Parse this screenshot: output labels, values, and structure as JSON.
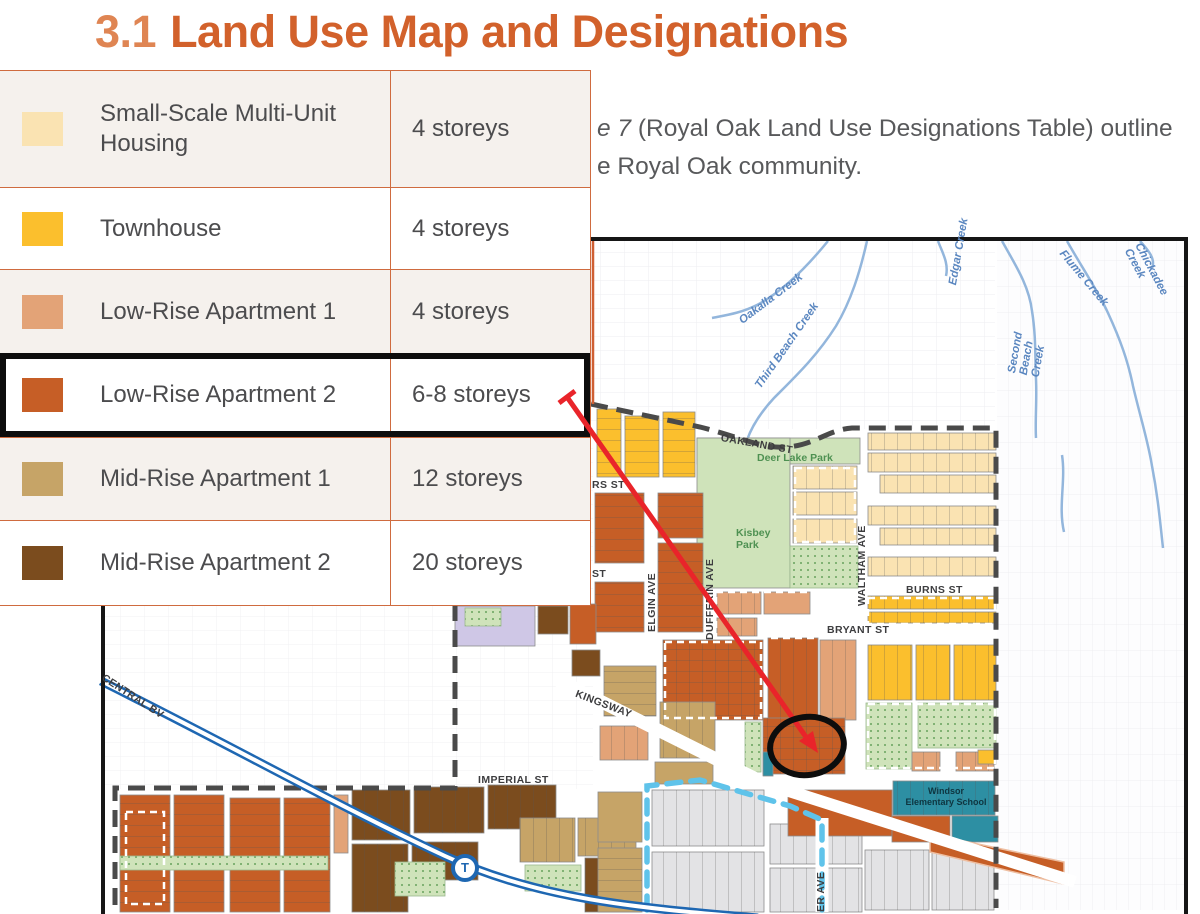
{
  "title": {
    "number": "3.1",
    "text": "Land Use Map and Designations"
  },
  "paragraph": {
    "line1_italic": "e 7",
    "line1_rest": " (Royal Oak Land Use Designations Table) outline",
    "line2": "e Royal Oak community."
  },
  "legend": {
    "rows": [
      {
        "key": "ssmuh",
        "label": "Small-Scale Multi-Unit Housing",
        "storeys": "4 storeys",
        "color": "#fae3b2",
        "highlighted": false
      },
      {
        "key": "town",
        "label": "Townhouse",
        "storeys": "4 storeys",
        "color": "#fbbf2d",
        "highlighted": false
      },
      {
        "key": "lra1",
        "label": "Low-Rise Apartment 1",
        "storeys": "4 storeys",
        "color": "#e3a377",
        "highlighted": false
      },
      {
        "key": "lra2",
        "label": "Low-Rise Apartment 2",
        "storeys": "6-8 storeys",
        "color": "#c65e26",
        "highlighted": true
      },
      {
        "key": "mra1",
        "label": "Mid-Rise Apartment 1",
        "storeys": "12 storeys",
        "color": "#c6a467",
        "highlighted": false
      },
      {
        "key": "mra2",
        "label": "Mid-Rise Apartment 2",
        "storeys": "20 storeys",
        "color": "#7b4c1e",
        "highlighted": false
      }
    ]
  },
  "map": {
    "street_labels": {
      "oakland": "OAKLAND ST",
      "burns": "BURNS ST",
      "bryant": "BRYANT ST",
      "waltham": "WALTHAM AVE",
      "elgin": "ELGIN AVE",
      "dufferin": "DUFFERIN AVE",
      "kingsway": "KINGSWAY",
      "imperial": "IMPERIAL ST",
      "central": "CENTRAL BV",
      "rs_st_partial": "RS ST",
      "st_partial": "ST",
      "er_ave_partial": "ER AVE"
    },
    "creek_labels": {
      "oakalla": "Oakalla Creek",
      "third_beach": "Third Beach Creek",
      "edgar": "Edgar Creek",
      "second_beach": "Second Beach Creek",
      "flume": "Flume Creek",
      "chickadee": "Chickadee Creek"
    },
    "park_labels": {
      "deer_lake": "Deer Lake Park",
      "kisbey": "Kisbey Park"
    },
    "school_label": "Windsor Elementary School",
    "transit_marker": "T"
  },
  "theme": {
    "title_number": "#df8553",
    "title_text": "#d2612b",
    "text": "#58595b",
    "legend_line": "#cf6b3f",
    "row_alt_bg": "#f5f1ed",
    "park": "#cfe3ba",
    "stipple_dot": "#68a35e",
    "civic": "#2d8fa3",
    "lavender": "#cfc7e6",
    "gray_parcel": "#e3e3e5",
    "creek": "#93b6dc",
    "skytrain": "#1e67b2",
    "boundary": "#4a4a4a",
    "boundary_alt": "#5fc3ea",
    "arrow": "#e9242a",
    "highlight": "#0d0d0d"
  }
}
